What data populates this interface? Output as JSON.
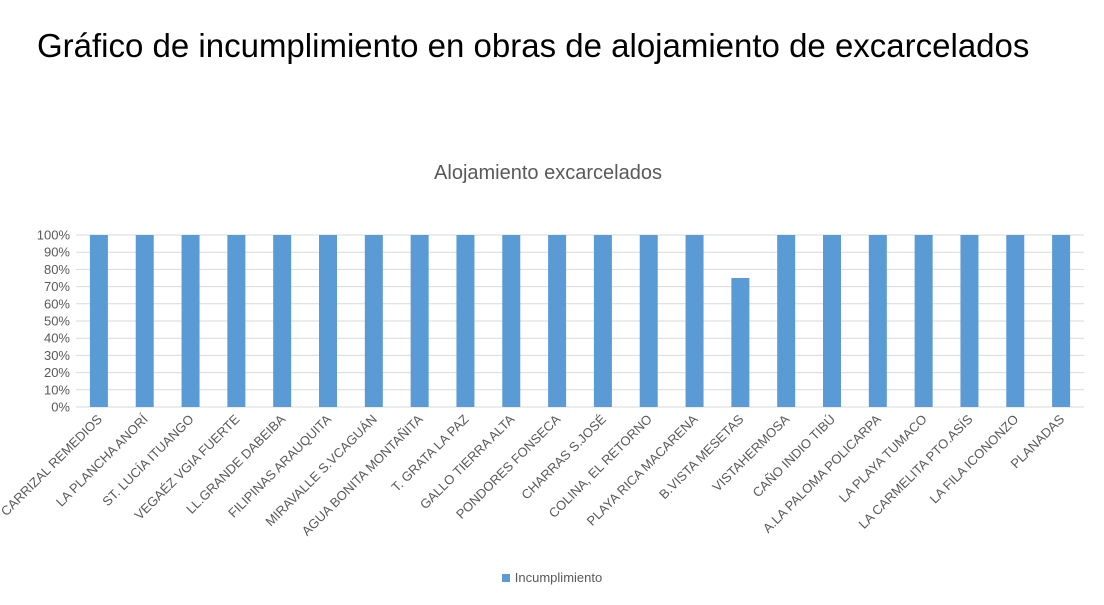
{
  "slide": {
    "title": "Gráfico de incumplimiento en obras de alojamiento de excarcelados"
  },
  "colors": {
    "bar": "#5b9bd5",
    "grid": "#d9d9d9",
    "text": "#595959",
    "title": "#000000"
  },
  "chart_data": {
    "type": "bar",
    "title": "Alojamiento excarcelados",
    "xlabel": "",
    "ylabel": "",
    "ylim": [
      0,
      1
    ],
    "yticks": [
      "0%",
      "10%",
      "20%",
      "30%",
      "40%",
      "50%",
      "60%",
      "70%",
      "80%",
      "90%",
      "100%"
    ],
    "grid": true,
    "legend_position": "bottom",
    "categories": [
      "CARRIZAL REMEDIOS",
      "LA PLANCHA ANORÍ",
      "ST. LUCÍA ITUANGO",
      "VEGAÉZ VGIA FUERTE",
      "LL.GRANDE DABEIBA",
      "FILIPINAS ARAUQUITA",
      "MIRAVALLE S.VCAGUÁN",
      "AGUA BONITA MONTAÑITA",
      "T. GRATA   LA PAZ",
      "GALLO   TIERRA ALTA",
      "PONDORES FONSECA",
      "CHARRAS S.JOSÉ",
      "COLINA, EL RETORNO",
      "PLAYA RICA MACARENA",
      "B.VISTA MESETAS",
      "VISTAHERMOSA",
      "CAÑO INDIO TIBÚ",
      "A.LA PALOMA POLICARPA",
      "LA PLAYA TUMACO",
      "LA CARMELITA PTO.ASÍS",
      "LA FILA ICONONZO",
      "PLANADAS"
    ],
    "series": [
      {
        "name": "Incumplimiento",
        "values": [
          1,
          1,
          1,
          1,
          1,
          1,
          1,
          1,
          1,
          1,
          1,
          1,
          1,
          1,
          0.75,
          1,
          1,
          1,
          1,
          1,
          1,
          1
        ]
      }
    ]
  }
}
